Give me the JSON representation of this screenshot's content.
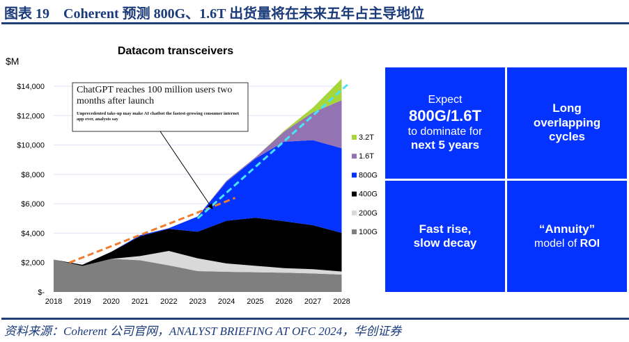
{
  "header": {
    "figure_title": "图表 19　Coherent 预测 800G、1.6T 出货量将在未来五年占主导地位"
  },
  "footer": {
    "source": "资料来源：Coherent 公司官网，ANALYST BRIEFING AT OFC 2024，华创证券"
  },
  "chart_data": {
    "type": "area",
    "stacked": true,
    "title": "Datacom transceivers",
    "ylabel": "$M",
    "xlabel": "",
    "x": [
      2018,
      2019,
      2020,
      2021,
      2022,
      2023,
      2024,
      2025,
      2026,
      2027,
      2028
    ],
    "ylim": [
      0,
      14000
    ],
    "yticks": [
      0,
      2000,
      4000,
      6000,
      8000,
      10000,
      12000,
      14000
    ],
    "ytick_labels": [
      "$-",
      "$2,000",
      "$4,000",
      "$6,000",
      "$8,000",
      "$10,000",
      "$12,000",
      "$14,000"
    ],
    "grid": "horizontal",
    "legend_placement": "right",
    "series": [
      {
        "name": "100G",
        "color": "#7f7f7f",
        "values": [
          2200,
          1770,
          2250,
          2160,
          1810,
          1420,
          1370,
          1340,
          1310,
          1260,
          1180
        ]
      },
      {
        "name": "200G",
        "color": "#d9d9d9",
        "values": [
          0,
          0,
          0,
          280,
          980,
          870,
          570,
          440,
          310,
          290,
          210
        ]
      },
      {
        "name": "400G",
        "color": "#000000",
        "values": [
          0,
          80,
          480,
          1350,
          1500,
          1810,
          2900,
          3270,
          3190,
          2990,
          2630
        ]
      },
      {
        "name": "800G",
        "color": "#0433ff",
        "values": [
          0,
          0,
          0,
          70,
          50,
          1030,
          2650,
          4020,
          5410,
          5790,
          5760
        ]
      },
      {
        "name": "1.6T",
        "color": "#9473b3",
        "values": [
          0,
          0,
          0,
          0,
          0,
          0,
          80,
          80,
          690,
          1890,
          3260
        ]
      },
      {
        "name": "3.2T",
        "color": "#a6d63a",
        "values": [
          0,
          0,
          0,
          0,
          0,
          0,
          0,
          0,
          50,
          320,
          1470
        ]
      }
    ],
    "trend_lines": [
      {
        "color": "#f07c30",
        "from": [
          2018.55,
          2000
        ],
        "to": [
          2024.3,
          6400
        ]
      },
      {
        "color": "#47e5f7",
        "from": [
          2023,
          5000
        ],
        "to": [
          2028.2,
          14100
        ]
      }
    ],
    "annotation": {
      "headline": "ChatGPT reaches 100 million users two months after launch",
      "subline": "Unprecedented take-up may make AI chatbot the fastest-growing consumer internet app ever, analysts say",
      "points_to": [
        2023.5,
        5700
      ]
    }
  },
  "panels": {
    "q1": {
      "l1": "Expect",
      "l2": "800G/1.6T",
      "l3": "to dominate for",
      "l4": "next 5 years"
    },
    "q2": {
      "l1": "Long overlapping cycles"
    },
    "q3": {
      "l1": "Fast rise,",
      "l2": "slow decay"
    },
    "q4": {
      "l1": "“Annuity”",
      "l2a": "model of ",
      "l2b": "ROI"
    }
  }
}
